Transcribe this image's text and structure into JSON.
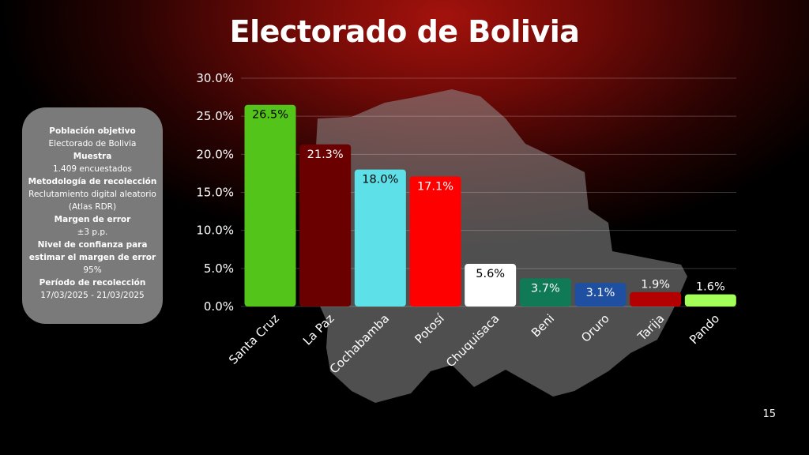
{
  "slide": {
    "title": "Electorado de Bolivia",
    "page_number": "15"
  },
  "info_box": {
    "items": [
      {
        "label": "Población objetivo",
        "value": "Electorado de Bolivia"
      },
      {
        "label": "Muestra",
        "value": "1.409 encuestados"
      },
      {
        "label": "Metodología de recolección",
        "value": "Reclutamiento digital aleatorio (Atlas RDR)"
      },
      {
        "label": "Margen de error",
        "value": "±3 p.p."
      },
      {
        "label": "Nivel de confianza para estimar el margen de error",
        "value": "95%"
      },
      {
        "label": "Período de recolección",
        "value": "17/03/2025 - 21/03/2025"
      }
    ]
  },
  "chart_data": {
    "type": "bar",
    "title": "",
    "xlabel": "",
    "ylabel": "",
    "ylim": [
      0,
      30
    ],
    "yticks": [
      "0.0%",
      "5.0%",
      "10.0%",
      "15.0%",
      "20.0%",
      "25.0%",
      "30.0%"
    ],
    "grid": true,
    "categories": [
      "Santa Cruz",
      "La Paz",
      "Cochabamba",
      "Potosí",
      "Chuquisaca",
      "Beni",
      "Oruro",
      "Tarija",
      "Pando"
    ],
    "values": [
      26.5,
      21.3,
      18.0,
      17.1,
      5.6,
      3.7,
      3.1,
      1.9,
      1.6
    ],
    "data_labels": [
      "26.5%",
      "21.3%",
      "18.0%",
      "17.1%",
      "5.6%",
      "3.7%",
      "3.1%",
      "1.9%",
      "1.6%"
    ],
    "colors": [
      "#52c41a",
      "#6b0000",
      "#5ee0e8",
      "#ff0000",
      "#ffffff",
      "#0f7a55",
      "#1f4fa0",
      "#b30000",
      "#a3ff57"
    ],
    "label_colors": [
      "#000000",
      "#ffffff",
      "#000000",
      "#ffffff",
      "#000000",
      "#ffffff",
      "#ffffff",
      "#ffffff",
      "#ffffff"
    ]
  }
}
